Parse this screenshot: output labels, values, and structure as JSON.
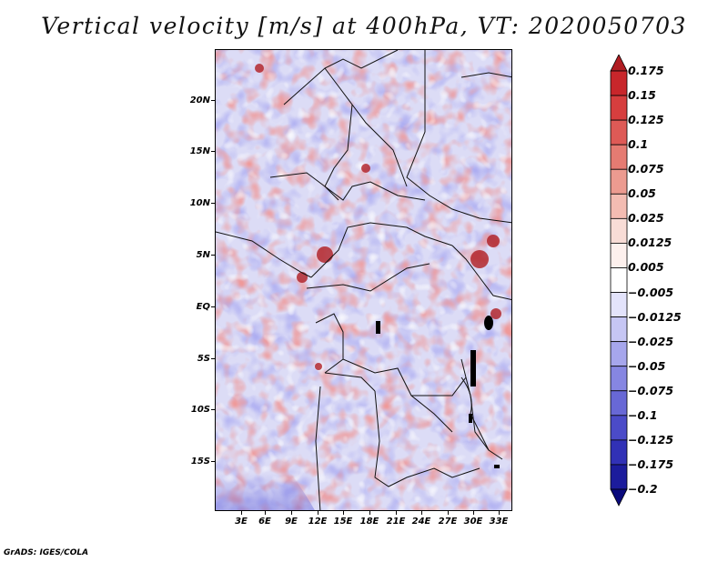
{
  "title": "Vertical velocity [m/s] at 400hPa, VT: 2020050703",
  "map": {
    "lat_labels": [
      "20N",
      "15N",
      "10N",
      "5N",
      "EQ",
      "5S",
      "10S",
      "15S"
    ],
    "lon_labels": [
      "3E",
      "6E",
      "9E",
      "12E",
      "15E",
      "18E",
      "21E",
      "24E",
      "27E",
      "30E",
      "33E"
    ],
    "lat_range": [
      -20,
      24.5
    ],
    "lon_range": [
      0.4,
      34.5
    ]
  },
  "colorbar": {
    "labels": [
      "0.175",
      "0.15",
      "0.125",
      "0.1",
      "0.075",
      "0.05",
      "0.025",
      "0.0125",
      "0.005",
      "−0.005",
      "−0.0125",
      "−0.025",
      "−0.05",
      "−0.075",
      "−0.1",
      "−0.125",
      "−0.175",
      "−0.2"
    ],
    "colors": [
      "#b01d22",
      "#c8262b",
      "#d63e3e",
      "#de5a56",
      "#e57b72",
      "#ec9b90",
      "#f3bcb2",
      "#f8dcd6",
      "#fdf0ed",
      "#ffffff",
      "#e3e3fb",
      "#c6c6f4",
      "#a6a6ec",
      "#8686e2",
      "#6868d6",
      "#4b4bc8",
      "#3131b6",
      "#1c1c9c",
      "#0a0a7c"
    ]
  },
  "credit": "GrADS: IGES/COLA"
}
